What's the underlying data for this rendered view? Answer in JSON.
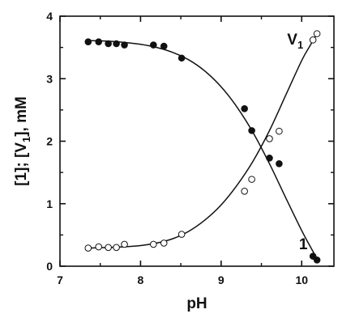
{
  "chart_data": {
    "type": "scatter",
    "xlabel": "pH",
    "ylabel": "[1]; [V1], mM",
    "ylabel_parts": {
      "a": "[1]; [V",
      "sub": "1",
      "b": "], mM"
    },
    "xlim": [
      7,
      10.4
    ],
    "ylim": [
      0,
      4
    ],
    "xticks": [
      7,
      8,
      9,
      10
    ],
    "yticks": [
      0,
      1,
      2,
      3,
      4
    ],
    "grid": false,
    "series": [
      {
        "name": "1",
        "marker": "filled-circle",
        "label_main": "1",
        "label_sub": "",
        "points": [
          [
            7.35,
            3.59
          ],
          [
            7.48,
            3.59
          ],
          [
            7.6,
            3.56
          ],
          [
            7.7,
            3.56
          ],
          [
            7.8,
            3.54
          ],
          [
            8.16,
            3.54
          ],
          [
            8.29,
            3.52
          ],
          [
            8.51,
            3.33
          ],
          [
            9.29,
            2.52
          ],
          [
            9.38,
            2.17
          ],
          [
            9.6,
            1.73
          ],
          [
            9.72,
            1.64
          ],
          [
            10.14,
            0.16
          ],
          [
            10.19,
            0.1
          ]
        ],
        "fit": [
          [
            7.35,
            3.61
          ],
          [
            7.6,
            3.6
          ],
          [
            7.8,
            3.58
          ],
          [
            8.0,
            3.55
          ],
          [
            8.2,
            3.5
          ],
          [
            8.4,
            3.42
          ],
          [
            8.6,
            3.3
          ],
          [
            8.8,
            3.12
          ],
          [
            9.0,
            2.87
          ],
          [
            9.2,
            2.54
          ],
          [
            9.4,
            2.13
          ],
          [
            9.6,
            1.64
          ],
          [
            9.8,
            1.1
          ],
          [
            10.0,
            0.57
          ],
          [
            10.1,
            0.33
          ],
          [
            10.19,
            0.12
          ]
        ]
      },
      {
        "name": "V1",
        "marker": "open-circle",
        "label_main": "V",
        "label_sub": "1",
        "points": [
          [
            7.35,
            0.29
          ],
          [
            7.48,
            0.31
          ],
          [
            7.6,
            0.3
          ],
          [
            7.7,
            0.3
          ],
          [
            7.8,
            0.35
          ],
          [
            8.16,
            0.35
          ],
          [
            8.29,
            0.37
          ],
          [
            8.51,
            0.51
          ],
          [
            9.29,
            1.2
          ],
          [
            9.38,
            1.39
          ],
          [
            9.6,
            2.04
          ],
          [
            9.72,
            2.16
          ],
          [
            10.14,
            3.62
          ],
          [
            10.19,
            3.72
          ]
        ],
        "fit": [
          [
            7.35,
            0.29
          ],
          [
            7.6,
            0.3
          ],
          [
            7.8,
            0.31
          ],
          [
            8.0,
            0.33
          ],
          [
            8.2,
            0.37
          ],
          [
            8.4,
            0.44
          ],
          [
            8.6,
            0.56
          ],
          [
            8.8,
            0.74
          ],
          [
            9.0,
            0.98
          ],
          [
            9.2,
            1.3
          ],
          [
            9.4,
            1.69
          ],
          [
            9.6,
            2.17
          ],
          [
            9.8,
            2.73
          ],
          [
            10.0,
            3.29
          ],
          [
            10.1,
            3.52
          ],
          [
            10.19,
            3.72
          ]
        ]
      }
    ]
  }
}
